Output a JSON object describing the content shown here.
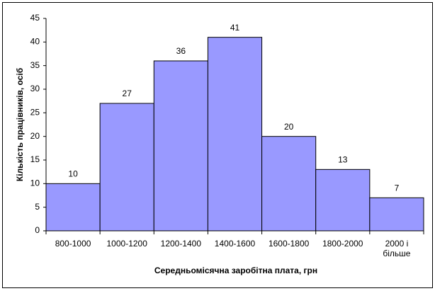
{
  "chart_data": {
    "type": "bar",
    "x_label": "Середньомісячна заробітна плата, грн",
    "y_label": "Кількість працівників, осіб",
    "categories": [
      "800-1000",
      "1000-1200",
      "1200-1400",
      "1400-1600",
      "1600-1800",
      "1800-2000",
      "2000 і більше"
    ],
    "values": [
      10,
      27,
      36,
      41,
      20,
      13,
      7
    ],
    "color": "#9999ff",
    "ylim": [
      0,
      45
    ],
    "yticks": [
      0,
      5,
      10,
      15,
      20,
      25,
      30,
      35,
      40,
      45
    ],
    "grid": false
  }
}
